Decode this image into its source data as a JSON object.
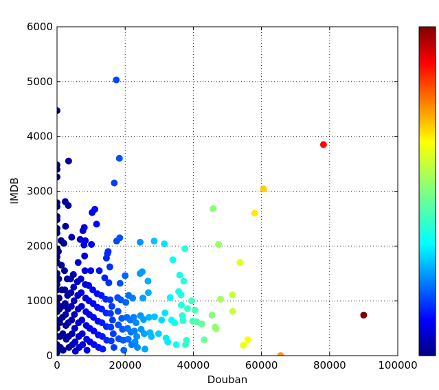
{
  "chart_data": {
    "type": "scatter",
    "title": "",
    "xlabel": "Douban",
    "ylabel": "IMDB",
    "xlim": [
      0,
      100000
    ],
    "ylim": [
      0,
      6000
    ],
    "xticks": [
      0,
      20000,
      40000,
      60000,
      80000,
      100000
    ],
    "yticks": [
      0,
      1000,
      2000,
      3000,
      4000,
      5000,
      6000
    ],
    "xtick_labels": [
      "0",
      "20000",
      "40000",
      "60000",
      "80000",
      "100000"
    ],
    "ytick_labels": [
      "0",
      "1000",
      "2000",
      "3000",
      "4000",
      "5000",
      "6000"
    ],
    "grid": true,
    "colormap": "jet",
    "color_value_range": [
      0,
      90000
    ],
    "colorbar_ticks": [],
    "colors": {
      "jet": [
        "#00007f",
        "#0000ff",
        "#007fff",
        "#00ffff",
        "#7fff7f",
        "#ffff00",
        "#ff7f00",
        "#ff0000",
        "#7f0000"
      ]
    },
    "points": [
      [
        0,
        4470
      ],
      [
        0,
        3480
      ],
      [
        0,
        3400
      ],
      [
        0,
        3260
      ],
      [
        0,
        2790
      ],
      [
        0,
        2720
      ],
      [
        0,
        2540
      ],
      [
        0,
        2480
      ],
      [
        0,
        2320
      ],
      [
        0,
        2240
      ],
      [
        0,
        1950
      ],
      [
        0,
        1800
      ],
      [
        0,
        1700
      ],
      [
        0,
        1500
      ],
      [
        0,
        1300
      ],
      [
        0,
        1200
      ],
      [
        0,
        1050
      ],
      [
        0,
        950
      ],
      [
        0,
        800
      ],
      [
        0,
        650
      ],
      [
        0,
        500
      ],
      [
        0,
        350
      ],
      [
        0,
        200
      ],
      [
        0,
        60
      ],
      [
        400,
        1900
      ],
      [
        500,
        1400
      ],
      [
        600,
        1050
      ],
      [
        700,
        850
      ],
      [
        800,
        600
      ],
      [
        900,
        350
      ],
      [
        1000,
        150
      ],
      [
        1200,
        2100
      ],
      [
        1300,
        1650
      ],
      [
        1400,
        1200
      ],
      [
        1500,
        900
      ],
      [
        1600,
        700
      ],
      [
        1700,
        400
      ],
      [
        1800,
        100
      ],
      [
        2000,
        2050
      ],
      [
        2200,
        1550
      ],
      [
        2300,
        1200
      ],
      [
        2400,
        950
      ],
      [
        2500,
        750
      ],
      [
        2600,
        550
      ],
      [
        2700,
        300
      ],
      [
        2400,
        2810
      ],
      [
        2500,
        2360
      ],
      [
        3300,
        2740
      ],
      [
        3400,
        3550
      ],
      [
        3000,
        1400
      ],
      [
        3100,
        1100
      ],
      [
        3200,
        850
      ],
      [
        3300,
        600
      ],
      [
        3400,
        350
      ],
      [
        3500,
        150
      ],
      [
        4000,
        1400
      ],
      [
        4100,
        1150
      ],
      [
        4200,
        900
      ],
      [
        4300,
        650
      ],
      [
        4400,
        400
      ],
      [
        4500,
        200
      ],
      [
        4300,
        2160
      ],
      [
        4800,
        1480
      ],
      [
        4900,
        1250
      ],
      [
        5000,
        1000
      ],
      [
        5100,
        750
      ],
      [
        5200,
        500
      ],
      [
        5300,
        250
      ],
      [
        5400,
        80
      ],
      [
        6200,
        1700
      ],
      [
        6000,
        1350
      ],
      [
        6100,
        1100
      ],
      [
        6200,
        850
      ],
      [
        6300,
        600
      ],
      [
        6400,
        350
      ],
      [
        6500,
        150
      ],
      [
        6800,
        2120
      ],
      [
        7000,
        1400
      ],
      [
        7100,
        1150
      ],
      [
        7200,
        900
      ],
      [
        7300,
        650
      ],
      [
        7400,
        400
      ],
      [
        7500,
        200
      ],
      [
        7600,
        2280
      ],
      [
        7900,
        2020
      ],
      [
        8000,
        2340
      ],
      [
        8300,
        2100
      ],
      [
        8100,
        1820
      ],
      [
        8200,
        1550
      ],
      [
        8300,
        1300
      ],
      [
        8400,
        1050
      ],
      [
        8500,
        800
      ],
      [
        8600,
        550
      ],
      [
        8700,
        300
      ],
      [
        8800,
        100
      ],
      [
        9300,
        1280
      ],
      [
        9400,
        1000
      ],
      [
        9500,
        750
      ],
      [
        9600,
        500
      ],
      [
        9700,
        250
      ],
      [
        9900,
        1550
      ],
      [
        10100,
        2030
      ],
      [
        10300,
        2610
      ],
      [
        11100,
        2670
      ],
      [
        10500,
        1200
      ],
      [
        10600,
        950
      ],
      [
        10700,
        700
      ],
      [
        10800,
        450
      ],
      [
        10900,
        200
      ],
      [
        11600,
        2400
      ],
      [
        11800,
        1130
      ],
      [
        11900,
        880
      ],
      [
        12000,
        630
      ],
      [
        12100,
        380
      ],
      [
        12200,
        150
      ],
      [
        12400,
        1550
      ],
      [
        13000,
        1100
      ],
      [
        13100,
        850
      ],
      [
        13200,
        600
      ],
      [
        13300,
        350
      ],
      [
        13400,
        120
      ],
      [
        14000,
        1420
      ],
      [
        14500,
        1780
      ],
      [
        14800,
        1860
      ],
      [
        15000,
        1900
      ],
      [
        14300,
        1030
      ],
      [
        14400,
        780
      ],
      [
        14500,
        530
      ],
      [
        14600,
        280
      ],
      [
        15200,
        1330
      ],
      [
        15500,
        1620
      ],
      [
        15600,
        1020
      ],
      [
        15700,
        770
      ],
      [
        15800,
        520
      ],
      [
        15900,
        270
      ],
      [
        16100,
        900
      ],
      [
        16300,
        650
      ],
      [
        16500,
        400
      ],
      [
        16700,
        150
      ],
      [
        16800,
        3150
      ],
      [
        17400,
        5030
      ],
      [
        17500,
        2090
      ],
      [
        17800,
        1060
      ],
      [
        17900,
        810
      ],
      [
        18000,
        560
      ],
      [
        18100,
        310
      ],
      [
        18300,
        3600
      ],
      [
        18400,
        2150
      ],
      [
        18500,
        1320
      ],
      [
        18700,
        1020
      ],
      [
        19000,
        680
      ],
      [
        19200,
        480
      ],
      [
        19400,
        280
      ],
      [
        19600,
        100
      ],
      [
        20000,
        1460
      ],
      [
        20200,
        970
      ],
      [
        20500,
        700
      ],
      [
        20700,
        500
      ],
      [
        20900,
        300
      ],
      [
        21000,
        1100
      ],
      [
        21500,
        650
      ],
      [
        21700,
        430
      ],
      [
        21900,
        200
      ],
      [
        22200,
        1050
      ],
      [
        22500,
        700
      ],
      [
        22700,
        450
      ],
      [
        22900,
        250
      ],
      [
        23200,
        600
      ],
      [
        23400,
        350
      ],
      [
        23600,
        150
      ],
      [
        24400,
        2070
      ],
      [
        24400,
        1500
      ],
      [
        24500,
        730
      ],
      [
        24700,
        480
      ],
      [
        25000,
        1530
      ],
      [
        25200,
        1050
      ],
      [
        25400,
        660
      ],
      [
        25600,
        400
      ],
      [
        25800,
        120
      ],
      [
        26700,
        1360
      ],
      [
        26800,
        1150
      ],
      [
        27000,
        700
      ],
      [
        27300,
        420
      ],
      [
        27700,
        350
      ],
      [
        28500,
        2090
      ],
      [
        28600,
        710
      ],
      [
        29800,
        400
      ],
      [
        30700,
        650
      ],
      [
        31500,
        2040
      ],
      [
        31700,
        780
      ],
      [
        32000,
        320
      ],
      [
        32500,
        250
      ],
      [
        33200,
        1060
      ],
      [
        33600,
        650
      ],
      [
        34000,
        1750
      ],
      [
        34500,
        600
      ],
      [
        35000,
        200
      ],
      [
        35700,
        1170
      ],
      [
        36000,
        1470
      ],
      [
        36400,
        1110
      ],
      [
        36500,
        920
      ],
      [
        36800,
        730
      ],
      [
        37000,
        640
      ],
      [
        37200,
        1360
      ],
      [
        37500,
        1950
      ],
      [
        37700,
        200
      ],
      [
        38000,
        280
      ],
      [
        38300,
        860
      ],
      [
        39500,
        1000
      ],
      [
        39800,
        630
      ],
      [
        40500,
        830
      ],
      [
        41000,
        620
      ],
      [
        42500,
        580
      ],
      [
        43200,
        290
      ],
      [
        45500,
        740
      ],
      [
        45800,
        2680
      ],
      [
        46400,
        520
      ],
      [
        46700,
        490
      ],
      [
        47400,
        2030
      ],
      [
        48000,
        1030
      ],
      [
        51500,
        1110
      ],
      [
        51600,
        810
      ],
      [
        53700,
        1700
      ],
      [
        54700,
        190
      ],
      [
        56000,
        290
      ],
      [
        58000,
        2600
      ],
      [
        60600,
        3040
      ],
      [
        65600,
        0
      ],
      [
        78200,
        3850
      ],
      [
        90000,
        740
      ]
    ]
  }
}
